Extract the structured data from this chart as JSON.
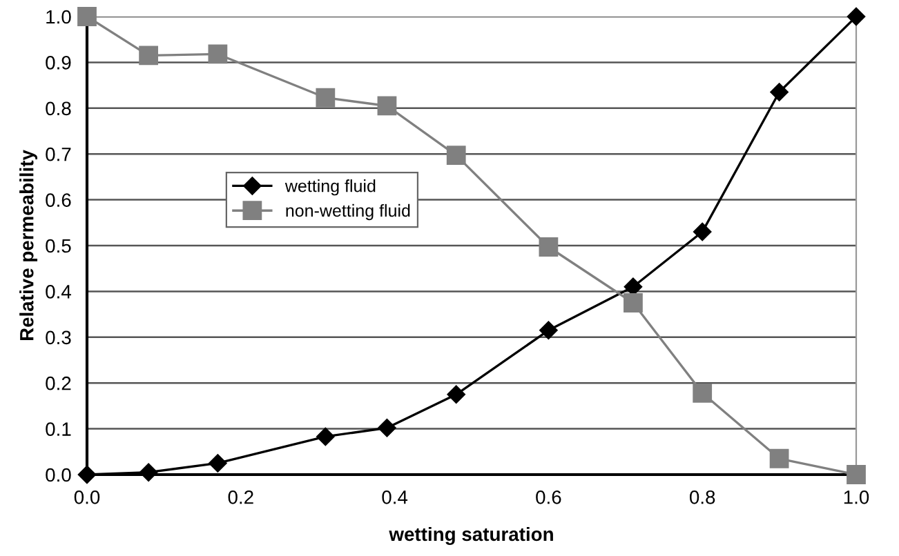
{
  "chart_data": {
    "type": "line",
    "xlabel": "wetting saturation",
    "ylabel": "Relative permeability",
    "x": [
      0,
      0.08,
      0.17,
      0.31,
      0.39,
      0.48,
      0.6,
      0.71,
      0.8,
      0.9,
      1.0
    ],
    "series": [
      {
        "name": "wetting fluid",
        "color": "#000000",
        "marker": "diamond",
        "values": [
          0,
          0.005,
          0.025,
          0.083,
          0.102,
          0.175,
          0.315,
          0.41,
          0.53,
          0.835,
          1.0
        ]
      },
      {
        "name": "non-wetting fluid",
        "color": "#808080",
        "marker": "square",
        "values": [
          1.0,
          0.915,
          0.918,
          0.823,
          0.805,
          0.697,
          0.497,
          0.375,
          0.178,
          0.035,
          0.0
        ]
      }
    ],
    "xlim": [
      0,
      1.0
    ],
    "ylim": [
      0,
      1.0
    ],
    "xticks": [
      {
        "value": 0,
        "label": "0.0"
      },
      0.2,
      0.4,
      0.6,
      0.8,
      {
        "value": 1.0,
        "label": "1.0"
      }
    ],
    "yticks": [
      {
        "value": 0,
        "label": "0.0"
      },
      0.1,
      0.2,
      0.3,
      0.4,
      0.5,
      0.6,
      0.7,
      0.8,
      0.9,
      {
        "value": 1.0,
        "label": "1.0"
      }
    ],
    "grid": "y",
    "legend": "center left",
    "line_style": "solid"
  }
}
